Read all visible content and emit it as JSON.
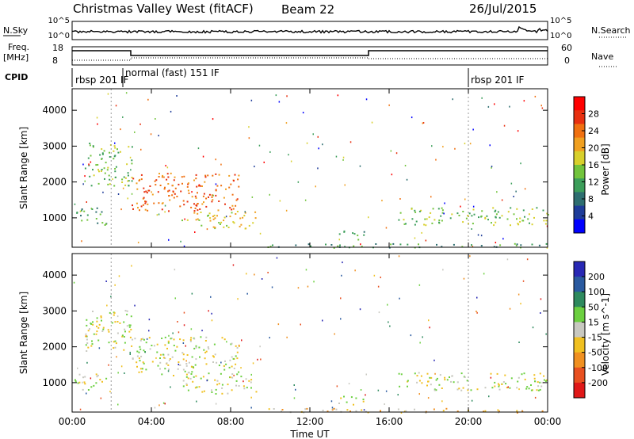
{
  "header": {
    "station": "Christmas Valley West (fitACF)",
    "beam": "Beam 22",
    "date": "26/Jul/2015"
  },
  "panels": {
    "nsky_label": "N.Sky",
    "nsearch_label": "N.Search",
    "nsky_top": "10^5",
    "nsky_bottom": "10^0",
    "freq_label": "Freq.",
    "freq_unit": "[MHz]",
    "freq_top": "18",
    "freq_bottom": "8",
    "nave_label": "Nave",
    "nave_top": "60",
    "nave_bottom": "0",
    "cpid_label": "CPID",
    "cpid_segments": [
      "rbsp 201 IF",
      "normal (fast) 151 IF",
      "rbsp 201 IF"
    ]
  },
  "colors": {
    "power": [
      "#0000ff",
      "#1e3c99",
      "#2e6e70",
      "#3c9e5a",
      "#72c43c",
      "#d8d02c",
      "#f0a020",
      "#f07010",
      "#e83010",
      "#ff0000"
    ],
    "velocity": [
      "#2828b4",
      "#2a5aa0",
      "#2e8a5e",
      "#6cd040",
      "#c8c8c0",
      "#f0c020",
      "#f09020",
      "#e85020",
      "#e01818"
    ],
    "gray": "#b8b8b0"
  },
  "chart_data": [
    {
      "type": "heatmap",
      "title": "Power",
      "ylabel": "Slant Range [km]",
      "xlabel": "Time UT",
      "ylim": [
        180,
        4600
      ],
      "yticks": [
        "1000",
        "2000",
        "3000",
        "4000"
      ],
      "xticks": [
        "00:00",
        "04:00",
        "08:00",
        "12:00",
        "16:00",
        "20:00",
        "00:00"
      ],
      "colorbar_label": "Power [dB]",
      "colorbar_ticks": [
        "4",
        "8",
        "12",
        "16",
        "20",
        "24",
        "28"
      ],
      "echo_regions": [
        {
          "t_start": 0.1,
          "t_end": 1.7,
          "range_low": 800,
          "range_high": 1300,
          "level": 3
        },
        {
          "t_start": 0.6,
          "t_end": 3.0,
          "range_low": 1900,
          "range_high": 3100,
          "level": 4
        },
        {
          "t_start": 3.0,
          "t_end": 8.4,
          "range_low": 1200,
          "range_high": 2300,
          "level": 7
        },
        {
          "t_start": 5.5,
          "t_end": 9.3,
          "range_low": 700,
          "range_high": 1200,
          "level": 5
        },
        {
          "t_start": 13.4,
          "t_end": 14.8,
          "range_low": 400,
          "range_high": 650,
          "level": 3
        },
        {
          "t_start": 16.4,
          "t_end": 24.0,
          "range_low": 800,
          "range_high": 1300,
          "level": 4
        },
        {
          "t_start": 9.5,
          "t_end": 24.0,
          "range_low": 180,
          "range_high": 300,
          "level": 3
        }
      ]
    },
    {
      "type": "heatmap",
      "title": "Velocity",
      "ylabel": "Slant Range [km]",
      "xlabel": "Time UT",
      "ylim": [
        180,
        4600
      ],
      "yticks": [
        "1000",
        "2000",
        "3000",
        "4000"
      ],
      "xticks": [
        "00:00",
        "04:00",
        "08:00",
        "12:00",
        "16:00",
        "20:00",
        "00:00"
      ],
      "colorbar_label": "Velocity [m s^-1]",
      "colorbar_ticks": [
        "200",
        "100",
        "50",
        "15",
        "-15",
        "-50",
        "-100",
        "-200"
      ],
      "echo_regions": [
        {
          "t_start": 0.1,
          "t_end": 1.7,
          "range_low": 800,
          "range_high": 1300,
          "level": 4
        },
        {
          "t_start": 0.6,
          "t_end": 3.0,
          "range_low": 1900,
          "range_high": 3100,
          "level": 4
        },
        {
          "t_start": 3.0,
          "t_end": 8.4,
          "range_low": 1200,
          "range_high": 2300,
          "level": 4
        },
        {
          "t_start": 5.5,
          "t_end": 9.3,
          "range_low": 700,
          "range_high": 1200,
          "level": 4
        },
        {
          "t_start": 13.4,
          "t_end": 14.8,
          "range_low": 400,
          "range_high": 650,
          "level": 4
        },
        {
          "t_start": 16.4,
          "t_end": 24.0,
          "range_low": 800,
          "range_high": 1300,
          "level": 4
        },
        {
          "t_start": 9.5,
          "t_end": 24.0,
          "range_low": 180,
          "range_high": 300,
          "level": 5
        }
      ]
    }
  ]
}
